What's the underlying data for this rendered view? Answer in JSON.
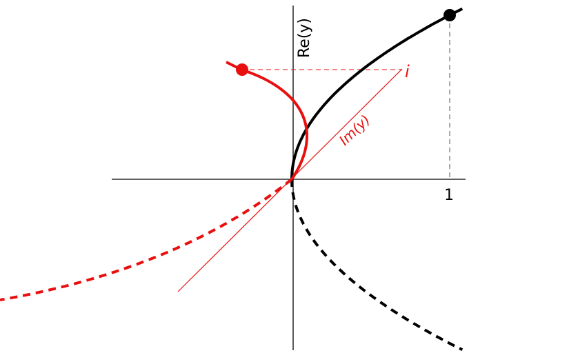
{
  "labels": {
    "y_axis": "Re(y)",
    "diagonal_axis": "Im(y)",
    "imag_unit": "i",
    "x_tick": "1"
  },
  "colors": {
    "real_curve": "#000000",
    "imag_curve": "#e8100f",
    "axes": "#000000"
  }
}
